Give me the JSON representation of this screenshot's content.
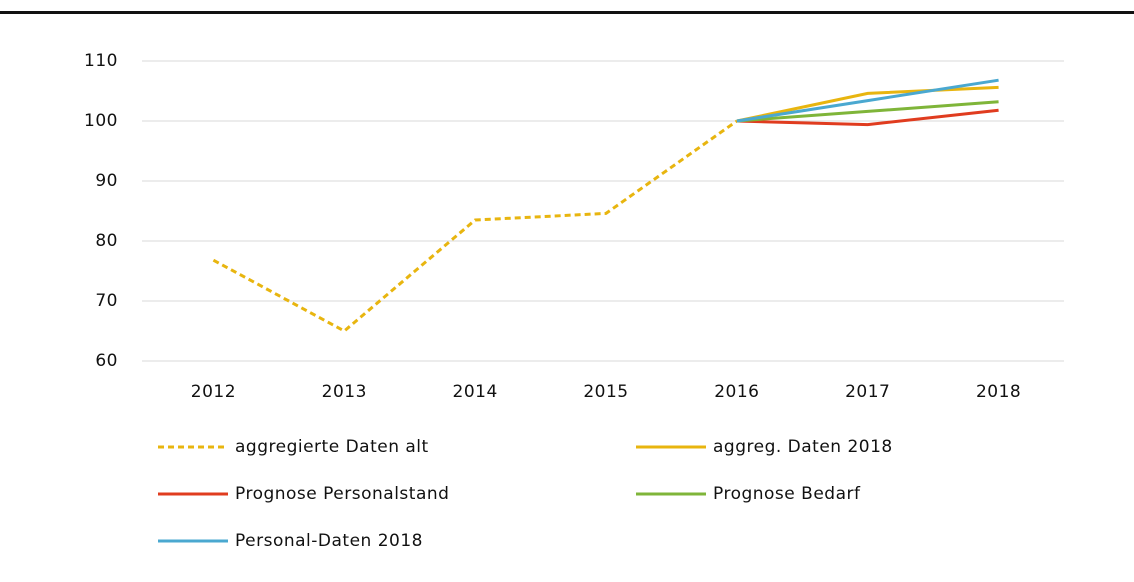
{
  "chart_data": {
    "type": "line",
    "categories": [
      "2012",
      "2013",
      "2014",
      "2015",
      "2016",
      "2017",
      "2018"
    ],
    "series": [
      {
        "name": "aggregierte Daten alt",
        "color": "#e8b50f",
        "dashed": true,
        "values": [
          76.8,
          65,
          83.5,
          84.6,
          100,
          null,
          null
        ]
      },
      {
        "name": "aggreg. Daten 2018",
        "color": "#e8b50f",
        "values": [
          null,
          null,
          null,
          null,
          100,
          104.6,
          105.6
        ]
      },
      {
        "name": "Prognose Personalstand",
        "color": "#e03c1f",
        "values": [
          null,
          null,
          null,
          null,
          100,
          99.4,
          101.8
        ]
      },
      {
        "name": "Prognose Bedarf",
        "color": "#7fb539",
        "values": [
          null,
          null,
          null,
          null,
          100,
          101.6,
          103.2
        ]
      },
      {
        "name": "Personal-Daten 2018",
        "color": "#4aa8d0",
        "values": [
          null,
          null,
          null,
          null,
          100,
          103.4,
          106.8
        ]
      }
    ],
    "ylim": [
      60,
      110
    ],
    "yticks": [
      60,
      70,
      80,
      90,
      100,
      110
    ],
    "grid": true
  }
}
